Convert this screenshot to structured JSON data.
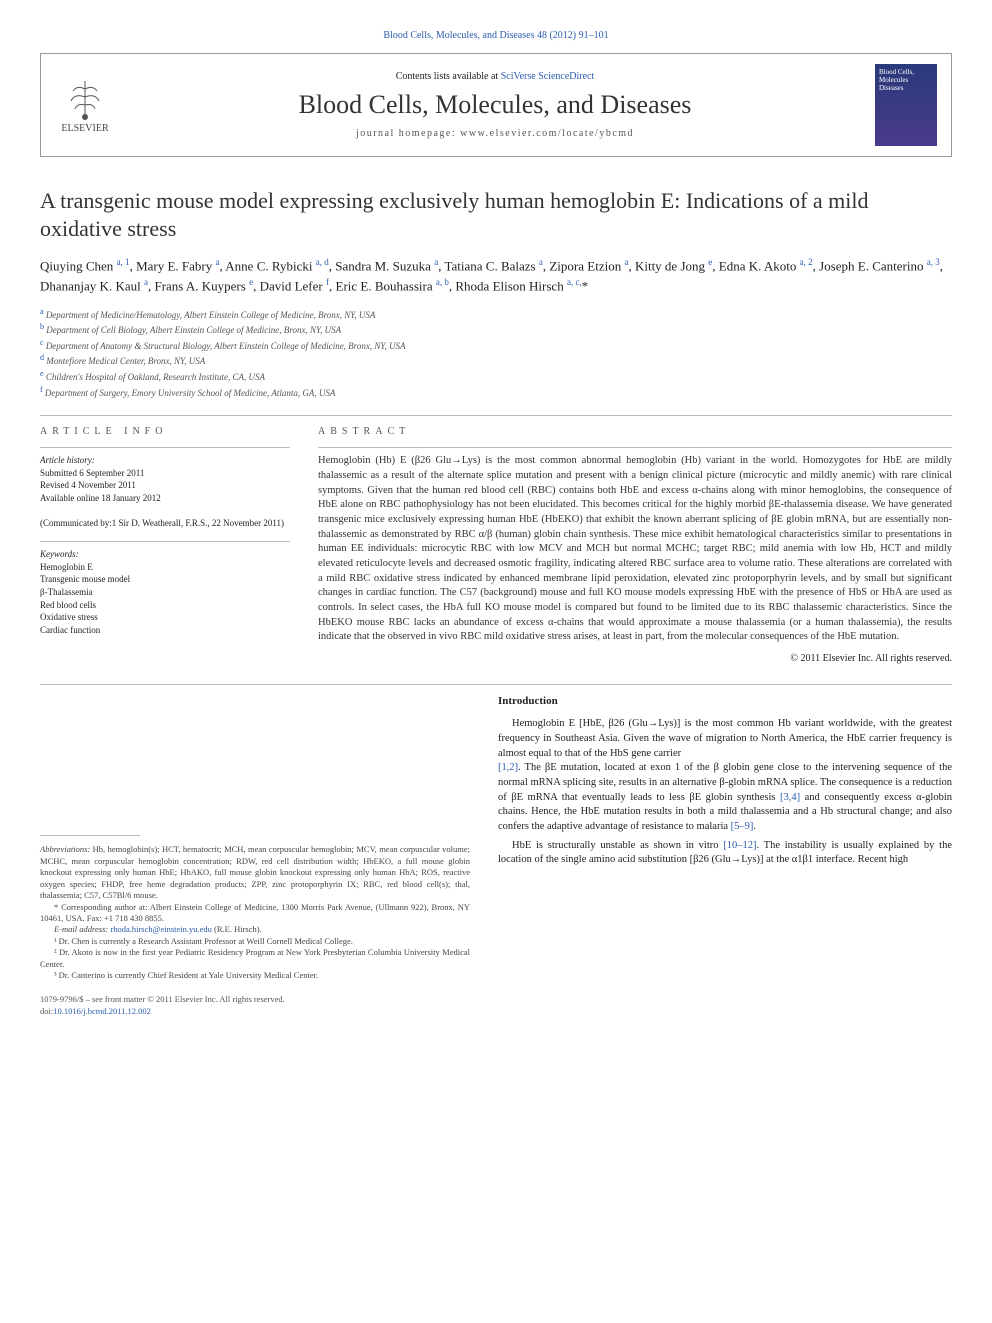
{
  "top_link": "Blood Cells, Molecules, and Diseases 48 (2012) 91–101",
  "header": {
    "contents_prefix": "Contents lists available at ",
    "contents_link": "SciVerse ScienceDirect",
    "journal": "Blood Cells, Molecules, and Diseases",
    "homepage": "journal homepage: www.elsevier.com/locate/ybcmd",
    "publisher": "ELSEVIER",
    "cover_text": "Blood Cells, Molecules Diseases"
  },
  "title": "A transgenic mouse model expressing exclusively human hemoglobin E: Indications of a mild oxidative stress",
  "authors_html": "Qiuying Chen <span class='sup'>a, 1</span>, Mary E. Fabry <span class='sup'>a</span>, Anne C. Rybicki <span class='sup'>a, d</span>, Sandra M. Suzuka <span class='sup'>a</span>, Tatiana C. Balazs <span class='sup'>a</span>, Zipora Etzion <span class='sup'>a</span>, Kitty de Jong <span class='sup'>e</span>, Edna K. Akoto <span class='sup'>a, 2</span>, Joseph E. Canterino <span class='sup'>a, 3</span>, Dhananjay K. Kaul <span class='sup'>a</span>, Frans A. Kuypers <span class='sup'>e</span>, David Lefer <span class='sup'>f</span>, Eric E. Bouhassira <span class='sup'>a, b</span>, Rhoda Elison Hirsch <span class='sup'>a, c,</span>*",
  "affiliations": [
    {
      "sup": "a",
      "text": "Department of Medicine/Hematology, Albert Einstein College of Medicine, Bronx, NY, USA"
    },
    {
      "sup": "b",
      "text": "Department of Cell Biology, Albert Einstein College of Medicine, Bronx, NY, USA"
    },
    {
      "sup": "c",
      "text": "Department of Anatomy & Structural Biology, Albert Einstein College of Medicine, Bronx, NY, USA"
    },
    {
      "sup": "d",
      "text": "Montefiore Medical Center, Bronx, NY, USA"
    },
    {
      "sup": "e",
      "text": "Children's Hospital of Oakland, Research Institute, CA, USA"
    },
    {
      "sup": "f",
      "text": "Department of Surgery, Emory University School of Medicine, Atlanta, GA, USA"
    }
  ],
  "article_info": {
    "header": "article info",
    "history_label": "Article history:",
    "history": [
      "Submitted 6 September 2011",
      "Revised 4 November 2011",
      "Available online 18 January 2012"
    ],
    "communicated": "(Communicated by:1 Sir D. Weatherall, F.R.S., 22 November 2011)",
    "keywords_label": "Keywords:",
    "keywords": [
      "Hemoglobin E",
      "Transgenic mouse model",
      "β-Thalassemia",
      "Red blood cells",
      "Oxidative stress",
      "Cardiac function"
    ]
  },
  "abstract": {
    "header": "abstract",
    "text": "Hemoglobin (Hb) E (β26 Glu→Lys) is the most common abnormal hemoglobin (Hb) variant in the world. Homozygotes for HbE are mildly thalassemic as a result of the alternate splice mutation and present with a benign clinical picture (microcytic and mildly anemic) with rare clinical symptoms. Given that the human red blood cell (RBC) contains both HbE and excess α-chains along with minor hemoglobins, the consequence of HbE alone on RBC pathophysiology has not been elucidated. This becomes critical for the highly morbid βE-thalassemia disease. We have generated transgenic mice exclusively expressing human HbE (HbEKO) that exhibit the known aberrant splicing of βE globin mRNA, but are essentially non-thalassemic as demonstrated by RBC α/β (human) globin chain synthesis. These mice exhibit hematological characteristics similar to presentations in human EE individuals: microcytic RBC with low MCV and MCH but normal MCHC; target RBC; mild anemia with low Hb, HCT and mildly elevated reticulocyte levels and decreased osmotic fragility, indicating altered RBC surface area to volume ratio. These alterations are correlated with a mild RBC oxidative stress indicated by enhanced membrane lipid peroxidation, elevated zinc protoporphyrin levels, and by small but significant changes in cardiac function. The C57 (background) mouse and full KO mouse models expressing HbE with the presence of HbS or HbA are used as controls. In select cases, the HbA full KO mouse model is compared but found to be limited due to its RBC thalassemic characteristics. Since the HbEKO mouse RBC lacks an abundance of excess α-chains that would approximate a mouse thalassemia (or a human thalassemia), the results indicate that the observed in vivo RBC mild oxidative stress arises, at least in part, from the molecular consequences of the HbE mutation.",
    "copyright": "© 2011 Elsevier Inc. All rights reserved."
  },
  "intro": {
    "heading": "Introduction",
    "p1": "Hemoglobin E [HbE, β26 (Glu→Lys)] is the most common Hb variant worldwide, with the greatest frequency in Southeast Asia. Given the wave of migration to North America, the HbE carrier frequency is almost equal to that of the HbS gene carrier ",
    "r1": "[1,2]",
    "p1b": ". The βE mutation, located at exon 1 of the β globin gene close to the intervening sequence of the normal mRNA splicing site, results in an alternative β-globin mRNA splice. The consequence is a reduction of βE mRNA that eventually leads to less βE globin synthesis ",
    "r2": "[3,4]",
    "p1c": " and consequently excess α-globin chains. Hence, the HbE mutation results in both a mild thalassemia and a Hb structural change; and also confers the adaptive advantage of resistance to malaria ",
    "r3": "[5–9]",
    "p1d": ".",
    "p2a": "HbE is structurally unstable as shown in vitro ",
    "r4": "[10–12]",
    "p2b": ". The instability is usually explained by the location of the single amino acid substitution [β26 (Glu→Lys)] at the α1β1 interface. Recent high"
  },
  "footnotes": {
    "abbrev_label": "Abbreviations:",
    "abbrev": " Hb, hemoglobin(s); HCT, hematocrit; MCH, mean corpuscular hemoglobin; MCV, mean corpuscular volume; MCHC, mean corpuscular hemoglobin concentration; RDW, red cell distribution width; HbEKO, a full mouse globin knockout expressing only human HbE; HbAKO, full mouse globin knockout expressing only human HbA; ROS, reactive oxygen species; FHDP, free heme degradation products; ZPP, zinc protoporphyrin IX; RBC, red blood cell(s); thal, thalassemia; C57, C57Bl/6 mouse.",
    "corr": "* Corresponding author at: Albert Einstein College of Medicine, 1300 Morris Park Avenue, (Ullmann 922), Bronx, NY 10461, USA. Fax: +1 718 430 8855.",
    "email_label": "E-mail address: ",
    "email": "rhoda.hirsch@einstein.yu.edu",
    "email_suffix": " (R.E. Hirsch).",
    "n1": "¹ Dr. Chen is currently a Research Assistant Professor at Weill Cornell Medical College.",
    "n2": "² Dr. Akoto is now in the first year Pediatric Residency Program at New York Presbyterian Columbia University Medical Center.",
    "n3": "³ Dr. Canterino is currently Chief Resident at Yale University Medical Center."
  },
  "bottom": {
    "line1": "1079-9796/$ – see front matter © 2011 Elsevier Inc. All rights reserved.",
    "doi_prefix": "doi:",
    "doi": "10.1016/j.bcmd.2011.12.002"
  },
  "colors": {
    "link": "#2a5db0",
    "text": "#333333",
    "rule": "#bbbbbb"
  }
}
